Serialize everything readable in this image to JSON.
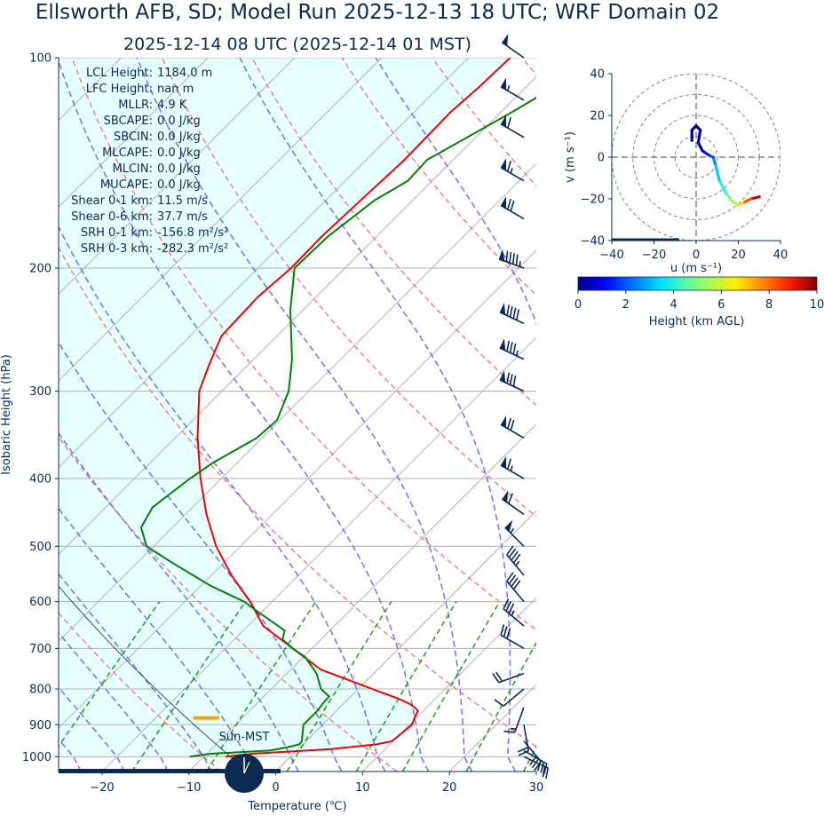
{
  "header": {
    "title": "Ellsworth AFB, SD; Model Run 2025-12-13 18 UTC; WRF Domain 02",
    "subtitle": "2025-12-14 08 UTC  (2025-12-14 01 MST)"
  },
  "indices": [
    {
      "label": "LCL Height:",
      "value": "1184.0 m"
    },
    {
      "label": "LFC Height:",
      "value": "nan m"
    },
    {
      "label": "MLLR:",
      "value": "4.9 K"
    },
    {
      "label": "SBCAPE:",
      "value": "0.0 J/kg"
    },
    {
      "label": "SBCIN:",
      "value": "0.0 J/kg"
    },
    {
      "label": "MLCAPE:",
      "value": "0.0 J/kg"
    },
    {
      "label": "MLCIN:",
      "value": "0.0 J/kg"
    },
    {
      "label": "MUCAPE:",
      "value": "0.0 J/kg"
    },
    {
      "label": "Shear 0-1 km:",
      "value": "11.5 m/s"
    },
    {
      "label": "Shear 0-6 km:",
      "value": "37.7 m/s"
    },
    {
      "label": "SRH 0-1 km:",
      "value": "-156.8 m²/s²"
    },
    {
      "label": "SRH 0-3 km:",
      "value": "-282.3 m²/s²"
    }
  ],
  "clock_label": "Sun-MST",
  "colors": {
    "temperature": "#ee0000",
    "dewpoint": "#008000",
    "dry_adiabat": "#f08080",
    "moist_adiabat": "#7070ee",
    "mixing_ratio": "#229922",
    "lcl_marker": "#ffa500",
    "cape_fill": "#e6ffff",
    "text": "#0a2a4f"
  },
  "chart_data": [
    {
      "type": "line",
      "name": "skew-t",
      "xlabel": "Temperature (℃)",
      "ylabel": "Isobaric Height (hPa)",
      "xlim": [
        -25,
        30
      ],
      "ylim": [
        1050,
        100
      ],
      "y_scale": "log",
      "skew_deg": 45,
      "xticks": [
        -20,
        -10,
        0,
        10,
        20,
        30
      ],
      "xtick_labels": [
        "−20",
        "−10",
        "0",
        "10",
        "20",
        "30"
      ],
      "yticks": [
        1000,
        900,
        800,
        700,
        600,
        500,
        400,
        300,
        200,
        100
      ],
      "grid": true,
      "series": [
        {
          "key": "temperature",
          "p": [
            1000,
            990,
            980,
            975,
            960,
            950,
            900,
            880,
            860,
            850,
            840,
            825,
            810,
            800,
            780,
            750,
            700,
            650,
            600,
            550,
            500,
            450,
            400,
            350,
            300,
            275,
            250,
            220,
            200,
            180,
            160,
            140,
            120,
            110,
            100
          ],
          "t": [
            -7.5,
            -4.6,
            1.2,
            3.8,
            8.5,
            9.9,
            10.3,
            9.8,
            9.4,
            8.6,
            7.6,
            5.6,
            3.2,
            1.6,
            -1.6,
            -6.6,
            -12.2,
            -18.2,
            -22.5,
            -27.7,
            -32.8,
            -37.6,
            -42.4,
            -47.4,
            -52.6,
            -54.5,
            -56.4,
            -56.7,
            -56.2,
            -56.3,
            -56.0,
            -55.6,
            -55.8,
            -55.4,
            -55.2
          ]
        },
        {
          "key": "dewpoint",
          "p": [
            1000,
            990,
            980,
            970,
            960,
            950,
            900,
            860,
            840,
            820,
            800,
            760,
            720,
            700,
            680,
            660,
            640,
            620,
            600,
            570,
            530,
            500,
            470,
            440,
            400,
            380,
            350,
            330,
            300,
            270,
            230,
            200,
            180,
            160,
            150,
            140,
            120,
            100
          ],
          "t": [
            -11.6,
            -9.4,
            -3.1,
            -1.5,
            -0.4,
            -0.5,
            -2.2,
            -2.2,
            -2.4,
            -2.5,
            -4.3,
            -6.6,
            -9.8,
            -12.2,
            -14.4,
            -15.2,
            -17.8,
            -20.5,
            -23.2,
            -28.8,
            -35.6,
            -40.8,
            -43.6,
            -44.6,
            -43.6,
            -42.8,
            -40.6,
            -40.3,
            -42.3,
            -45.6,
            -51.4,
            -55.8,
            -55.6,
            -54.4,
            -52.8,
            -53.0,
            -48.8,
            -44.4
          ]
        }
      ],
      "lcl": {
        "p": 880,
        "t_range": [
          -9.5,
          -6.5
        ]
      },
      "wind_barbs": [
        {
          "p": 1000,
          "spd_kt": 18,
          "dir_deg": 115
        },
        {
          "p": 980,
          "spd_kt": 28,
          "dir_deg": 120
        },
        {
          "p": 950,
          "spd_kt": 32,
          "dir_deg": 140
        },
        {
          "p": 900,
          "spd_kt": 22,
          "dir_deg": 170
        },
        {
          "p": 850,
          "spd_kt": 15,
          "dir_deg": 200
        },
        {
          "p": 800,
          "spd_kt": 12,
          "dir_deg": 230
        },
        {
          "p": 760,
          "spd_kt": 20,
          "dir_deg": 250
        },
        {
          "p": 700,
          "spd_kt": 30,
          "dir_deg": 300
        },
        {
          "p": 650,
          "spd_kt": 35,
          "dir_deg": 310
        },
        {
          "p": 600,
          "spd_kt": 40,
          "dir_deg": 320
        },
        {
          "p": 550,
          "spd_kt": 45,
          "dir_deg": 320
        },
        {
          "p": 500,
          "spd_kt": 55,
          "dir_deg": 315
        },
        {
          "p": 450,
          "spd_kt": 60,
          "dir_deg": 305
        },
        {
          "p": 400,
          "spd_kt": 65,
          "dir_deg": 300
        },
        {
          "p": 350,
          "spd_kt": 70,
          "dir_deg": 300
        },
        {
          "p": 300,
          "spd_kt": 80,
          "dir_deg": 295
        },
        {
          "p": 270,
          "spd_kt": 85,
          "dir_deg": 295
        },
        {
          "p": 240,
          "spd_kt": 90,
          "dir_deg": 295
        },
        {
          "p": 200,
          "spd_kt": 95,
          "dir_deg": 290
        },
        {
          "p": 170,
          "spd_kt": 70,
          "dir_deg": 300
        },
        {
          "p": 150,
          "spd_kt": 65,
          "dir_deg": 300
        },
        {
          "p": 130,
          "spd_kt": 60,
          "dir_deg": 300
        },
        {
          "p": 115,
          "spd_kt": 55,
          "dir_deg": 300
        },
        {
          "p": 100,
          "spd_kt": 50,
          "dir_deg": 305
        }
      ]
    },
    {
      "type": "line",
      "name": "hodograph",
      "xlabel": "u (m s⁻¹)",
      "ylabel": "v (m s⁻¹)",
      "xlim": [
        -40,
        40
      ],
      "ylim": [
        -40,
        40
      ],
      "xticks": [
        -40,
        -20,
        0,
        20,
        40
      ],
      "xtick_labels": [
        "−40",
        "−20",
        "0",
        "20",
        "40"
      ],
      "yticks": [
        40,
        20,
        0,
        -20,
        -40
      ],
      "ytick_labels": [
        "40",
        "20",
        "0",
        "−20",
        "−40"
      ],
      "rings": [
        10,
        20,
        30,
        40
      ],
      "colorbar": {
        "label": "Height (km AGL)",
        "ticks": [
          "0",
          "2",
          "4",
          "6",
          "8",
          "10"
        ],
        "range": [
          0,
          10
        ],
        "cmap": "jet"
      },
      "points": [
        {
          "u": 30,
          "v": -19,
          "h": 10
        },
        {
          "u": 26,
          "v": -20,
          "h": 9
        },
        {
          "u": 22,
          "v": -22,
          "h": 7.5
        },
        {
          "u": 20,
          "v": -23,
          "h": 6
        },
        {
          "u": 17,
          "v": -21,
          "h": 5.2
        },
        {
          "u": 14,
          "v": -17,
          "h": 4.5
        },
        {
          "u": 11,
          "v": -11,
          "h": 3.6
        },
        {
          "u": 9,
          "v": -3,
          "h": 2.8
        },
        {
          "u": 8,
          "v": 0,
          "h": 2.2
        },
        {
          "u": 6,
          "v": 1,
          "h": 1.6
        },
        {
          "u": 3,
          "v": 3,
          "h": 1.0
        },
        {
          "u": 1,
          "v": 7,
          "h": 0.6
        },
        {
          "u": 2,
          "v": 13,
          "h": 0.3
        },
        {
          "u": 0,
          "v": 15,
          "h": 0.15
        },
        {
          "u": -2,
          "v": 13,
          "h": 0.08
        },
        {
          "u": -2,
          "v": 8,
          "h": 0
        }
      ]
    }
  ]
}
